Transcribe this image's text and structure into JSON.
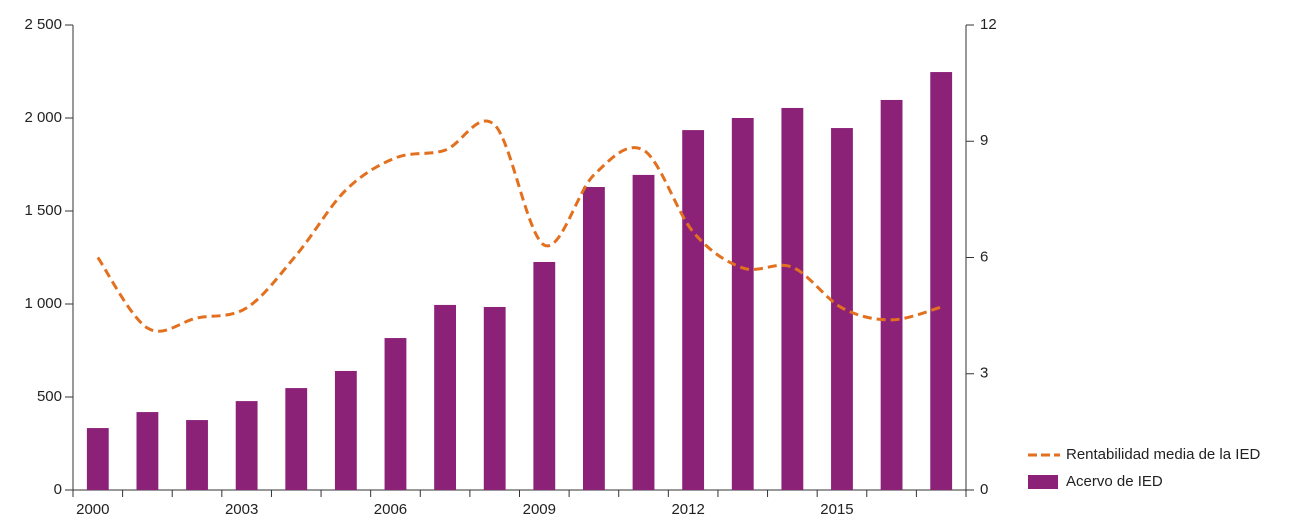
{
  "chart_data": {
    "type": "bar_line",
    "categories": [
      "2000",
      null,
      null,
      "2003",
      null,
      null,
      "2006",
      null,
      null,
      "2009",
      null,
      null,
      "2012",
      null,
      null,
      "2015",
      null,
      null
    ],
    "series": [
      {
        "name": "Acervo de IED",
        "type": "bar",
        "color": "#8b2278",
        "axis": "y",
        "values": [
          333,
          419,
          376,
          478,
          548,
          640,
          817,
          995,
          984,
          1226,
          1629,
          1694,
          1935,
          2000,
          2054,
          1946,
          2097,
          2247
        ]
      },
      {
        "name": "Rentabilidad media de la IED",
        "type": "line",
        "color": "#e2701e",
        "axis": "y2",
        "dashed": true,
        "values": [
          6.0,
          4.18,
          4.44,
          4.7,
          6.06,
          7.74,
          8.57,
          8.77,
          9.42,
          6.32,
          8.13,
          8.77,
          6.66,
          5.73,
          5.75,
          4.7,
          4.39,
          4.72
        ]
      }
    ],
    "ylim": [
      0,
      2500
    ],
    "yticks": [
      0,
      500,
      {
        "value": 1000,
        "label": "1 000"
      },
      {
        "value": 1500,
        "label": "1 500"
      },
      {
        "value": 2000,
        "label": "2 000"
      },
      {
        "value": 2500,
        "label": "2 500"
      }
    ],
    "y2lim": [
      0,
      12
    ],
    "y2ticks": [
      0,
      3,
      6,
      9,
      12
    ],
    "legend": "bottom-right"
  }
}
